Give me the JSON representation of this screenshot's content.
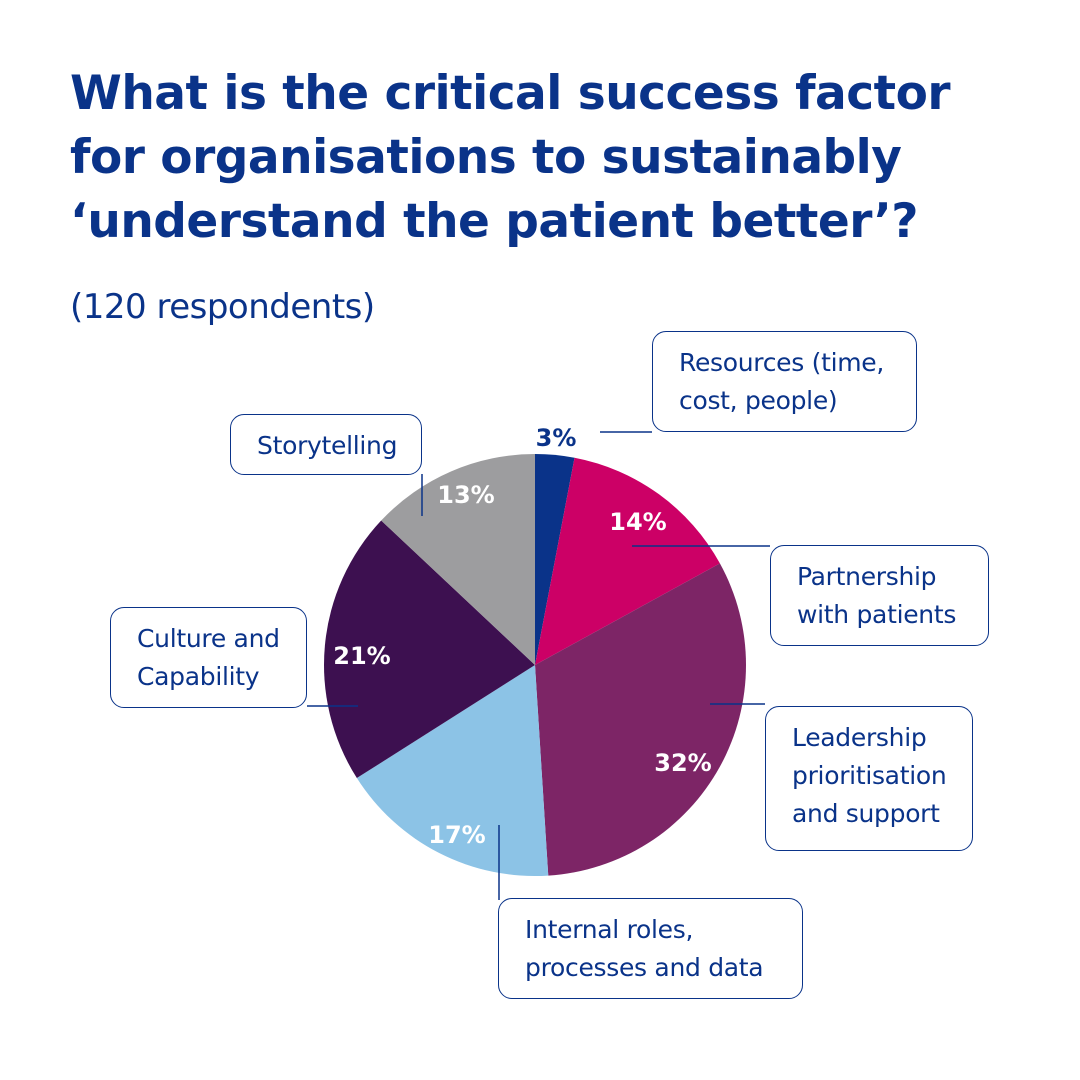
{
  "header": {
    "title_lines": [
      "What is the critical success factor",
      "for organisations to sustainably",
      "‘understand the patient better’?"
    ],
    "subtitle": "(120 respondents)"
  },
  "chart_data": {
    "type": "pie",
    "start_angle_deg": 0,
    "direction": "clockwise",
    "slices": [
      {
        "label_lines": [
          "Resources (time,",
          "cost, people)"
        ],
        "value": 3,
        "value_label": "3%",
        "color": "#0a3389"
      },
      {
        "label_lines": [
          "Partnership",
          "with patients"
        ],
        "value": 14,
        "value_label": "14%",
        "color": "#cc0066"
      },
      {
        "label_lines": [
          "Leadership",
          "prioritisation",
          "and support"
        ],
        "value": 32,
        "value_label": "32%",
        "color": "#7d2566"
      },
      {
        "label_lines": [
          "Internal roles,",
          "processes and data"
        ],
        "value": 17,
        "value_label": "17%",
        "color": "#8cc3e6"
      },
      {
        "label_lines": [
          "Culture and",
          "Capability"
        ],
        "value": 21,
        "value_label": "21%",
        "color": "#3d1050"
      },
      {
        "label_lines": [
          "Storytelling"
        ],
        "value": 13,
        "value_label": "13%",
        "color": "#9d9d9f"
      }
    ]
  },
  "colors": {
    "accent": "#0a3389",
    "background": "#ffffff",
    "slice_label_light": "#ffffff"
  }
}
